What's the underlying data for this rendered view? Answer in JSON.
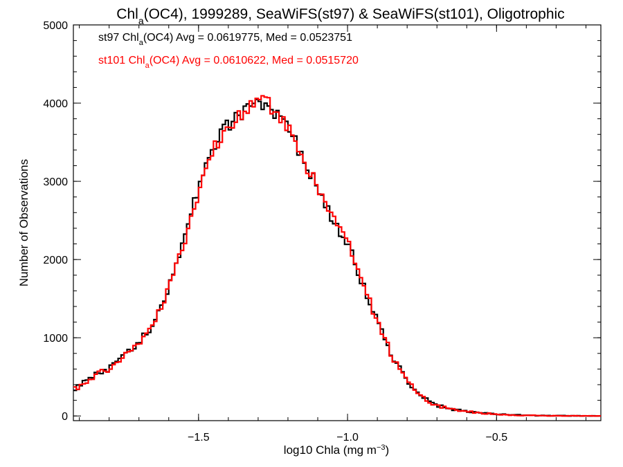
{
  "chart_data": {
    "type": "line",
    "step": true,
    "title": {
      "prefix": "Chl",
      "sub": "a",
      "rest": "(OC4), 1999289, SeaWiFS(st97) & SeaWiFS(st101), Oligotrophic"
    },
    "xlabel": {
      "main": "log10 Chla (mg m",
      "sup": "−3",
      "tail": ")"
    },
    "ylabel": "Number of Observations",
    "xlim": [
      -1.92,
      -0.15
    ],
    "ylim": [
      -60,
      5000
    ],
    "xticks": [
      {
        "value": -1.5,
        "label": "−1.5"
      },
      {
        "value": -1.0,
        "label": "−1.0"
      },
      {
        "value": -0.5,
        "label": "−0.5"
      }
    ],
    "xminor_step": 0.1,
    "yticks": [
      {
        "value": 0,
        "label": "0"
      },
      {
        "value": 1000,
        "label": "1000"
      },
      {
        "value": 2000,
        "label": "2000"
      },
      {
        "value": 3000,
        "label": "3000"
      },
      {
        "value": 4000,
        "label": "4000"
      },
      {
        "value": 5000,
        "label": "5000"
      }
    ],
    "yminor_step": 200,
    "grid": false,
    "legend_position": "top-left",
    "legend": [
      {
        "color": "#000000",
        "prefix": "st97 Chl",
        "sub": "a",
        "rest": "(OC4) Avg = 0.0619775, Med = 0.0523751"
      },
      {
        "color": "#ff0000",
        "prefix": "st101 Chl",
        "sub": "a",
        "rest": "(OC4) Avg = 0.0610622, Med = 0.0515720"
      }
    ],
    "bin_width": 0.01,
    "series": [
      {
        "key": "st97",
        "color": "#000000",
        "shift": 0.005,
        "x": [
          -1.92,
          -1.85,
          -1.8,
          -1.75,
          -1.7,
          -1.65,
          -1.6,
          -1.55,
          -1.5,
          -1.45,
          -1.4,
          -1.35,
          -1.3,
          -1.28,
          -1.25,
          -1.2,
          -1.15,
          -1.1,
          -1.05,
          -1.0,
          -0.95,
          -0.9,
          -0.85,
          -0.8,
          -0.75,
          -0.7,
          -0.65,
          -0.6,
          -0.55,
          -0.5,
          -0.45,
          -0.4,
          -0.35,
          -0.3,
          -0.25,
          -0.2,
          -0.15
        ],
        "y": [
          320,
          500,
          600,
          760,
          920,
          1150,
          1600,
          2150,
          2850,
          3400,
          3700,
          3850,
          3950,
          3980,
          3950,
          3700,
          3350,
          2950,
          2550,
          2250,
          1750,
          1250,
          800,
          480,
          250,
          140,
          90,
          60,
          40,
          25,
          15,
          8,
          5,
          3,
          2,
          1,
          0
        ]
      },
      {
        "key": "st101",
        "color": "#ff0000",
        "shift": 0.0,
        "x": [
          -1.92,
          -1.85,
          -1.8,
          -1.75,
          -1.7,
          -1.65,
          -1.6,
          -1.55,
          -1.5,
          -1.45,
          -1.4,
          -1.35,
          -1.3,
          -1.28,
          -1.25,
          -1.2,
          -1.15,
          -1.1,
          -1.05,
          -1.0,
          -0.95,
          -0.9,
          -0.85,
          -0.8,
          -0.75,
          -0.7,
          -0.65,
          -0.6,
          -0.55,
          -0.5,
          -0.45,
          -0.4,
          -0.35,
          -0.3,
          -0.25,
          -0.2,
          -0.15
        ],
        "y": [
          330,
          510,
          610,
          770,
          930,
          1160,
          1620,
          2170,
          2870,
          3420,
          3720,
          3880,
          3980,
          4020,
          3930,
          3670,
          3310,
          2910,
          2510,
          2210,
          1710,
          1210,
          760,
          450,
          235,
          130,
          85,
          55,
          38,
          22,
          13,
          7,
          4,
          2,
          1,
          1,
          0
        ]
      }
    ]
  }
}
